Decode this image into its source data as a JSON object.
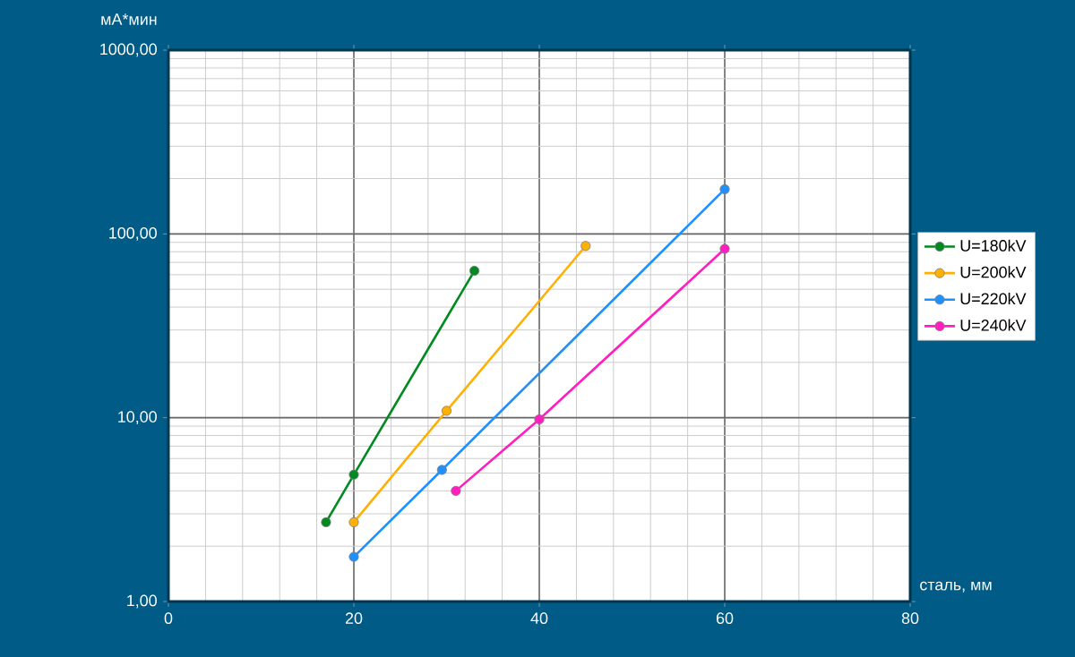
{
  "chart_data": {
    "type": "line",
    "xlabel": "сталь, мм",
    "ylabel": "мА*мин",
    "log": "y",
    "grid": true,
    "legend": "right",
    "marker": "circle",
    "line_style": "solid",
    "xlim": [
      0,
      80
    ],
    "ylim": [
      1,
      1000
    ],
    "xticks": [
      0,
      20,
      40,
      60,
      80
    ],
    "yticks": [
      {
        "value": 1,
        "label": "1,00"
      },
      {
        "value": 10,
        "label": "10,00"
      },
      {
        "value": 100,
        "label": "100,00"
      },
      {
        "value": 1000,
        "label": "1000,00"
      }
    ],
    "series": [
      {
        "name": "U=180kV",
        "color": "#008a20",
        "x": [
          17,
          20,
          33
        ],
        "values": [
          2.7,
          4.9,
          63
        ]
      },
      {
        "name": "U=200kV",
        "color": "#ffb000",
        "x": [
          20,
          30,
          45
        ],
        "values": [
          2.7,
          10.9,
          86
        ]
      },
      {
        "name": "U=220kV",
        "color": "#1e90ff",
        "x": [
          20,
          29.5,
          60
        ],
        "values": [
          1.75,
          5.2,
          175
        ]
      },
      {
        "name": "U=240kV",
        "color": "#ff1fbf",
        "x": [
          31,
          40,
          60
        ],
        "values": [
          4,
          9.8,
          83
        ]
      }
    ]
  }
}
